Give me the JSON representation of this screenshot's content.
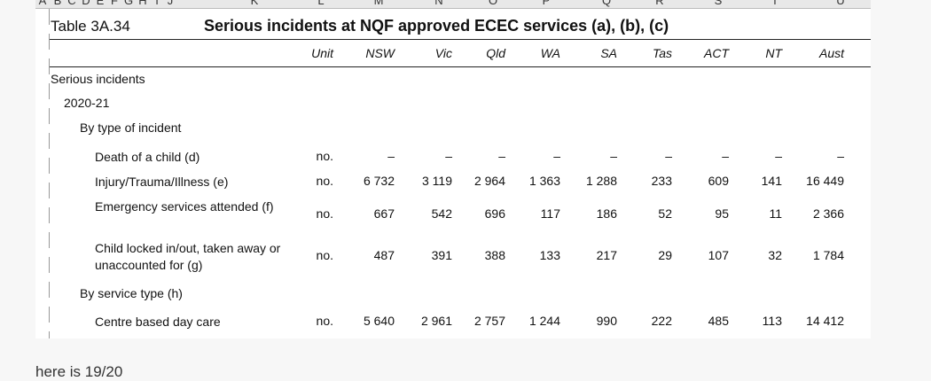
{
  "column_letters": [
    "A",
    "B",
    "C",
    "D",
    "E",
    "F",
    "G",
    "H",
    "I",
    "J",
    "K",
    "L",
    "M",
    "N",
    "O",
    "P",
    "Q",
    "R",
    "S",
    "T",
    "U"
  ],
  "table": {
    "id": "Table 3A.34",
    "title": "Serious incidents at NQF approved ECEC services (a), (b), (c)",
    "columns": [
      "Unit",
      "NSW",
      "Vic",
      "Qld",
      "WA",
      "SA",
      "Tas",
      "ACT",
      "NT",
      "Aust"
    ],
    "rows": [
      {
        "label": "Serious incidents"
      },
      {
        "label": "2020-21"
      },
      {
        "label": "By type of incident"
      },
      {
        "label": "Death of a child (d)",
        "cells": [
          "no.",
          "–",
          "–",
          "–",
          "–",
          "–",
          "–",
          "–",
          "–",
          "–"
        ]
      },
      {
        "label": "Injury/Trauma/Illness (e)",
        "cells": [
          "no.",
          "6 732",
          "3 119",
          "2 964",
          "1 363",
          "1 288",
          "233",
          "609",
          "141",
          "16 449"
        ]
      },
      {
        "label": "Emergency services attended (f)",
        "cells": [
          "no.",
          "667",
          "542",
          "696",
          "117",
          "186",
          "52",
          "95",
          "11",
          "2 366"
        ]
      },
      {
        "label": "Child locked in/out, taken away or unaccounted for (g)",
        "cells": [
          "no.",
          "487",
          "391",
          "388",
          "133",
          "217",
          "29",
          "107",
          "32",
          "1 784"
        ]
      },
      {
        "label": "By service type (h)"
      },
      {
        "label": "Centre based day care",
        "cells": [
          "no.",
          "5 640",
          "2 961",
          "2 757",
          "1 244",
          "990",
          "222",
          "485",
          "113",
          "14 412"
        ]
      }
    ]
  },
  "footer": "here is 19/20"
}
